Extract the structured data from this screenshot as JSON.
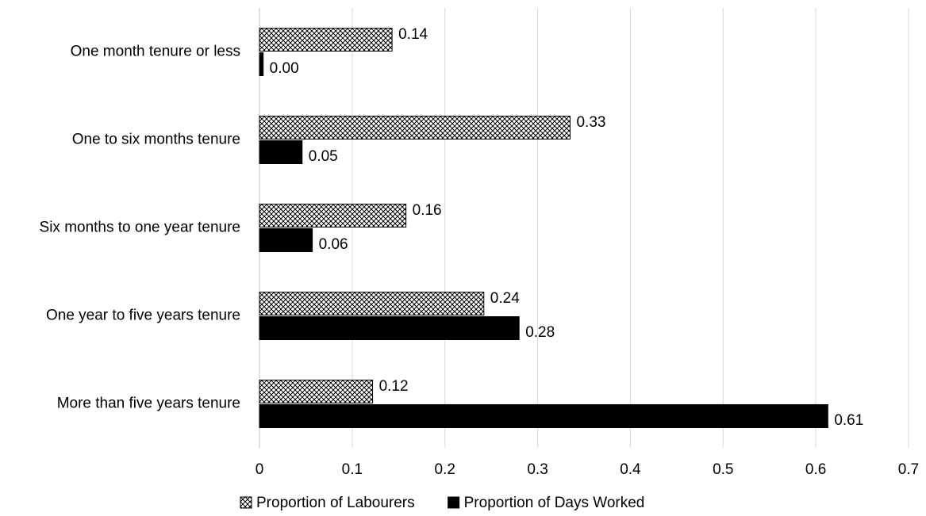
{
  "chart_data": {
    "type": "hbar",
    "categories": [
      "One month tenure or less",
      "One to six months tenure",
      "Six months to one year tenure",
      "One year to five years tenure",
      "More than five years tenure"
    ],
    "series": [
      {
        "name": "Proportion of Labourers",
        "color": "#000000",
        "pattern": "crosshatch",
        "values": [
          0.143,
          0.335,
          0.158,
          0.242,
          0.122
        ],
        "value_labels": [
          "0.14",
          "0.33",
          "0.16",
          "0.24",
          "0.12"
        ]
      },
      {
        "name": "Proportion of Days Worked",
        "color": "#000000",
        "values": [
          0.004,
          0.046,
          0.057,
          0.28,
          0.613
        ],
        "value_labels": [
          "0.00",
          "0.05",
          "0.06",
          "0.28",
          "0.61"
        ]
      }
    ],
    "xlim": [
      0,
      0.7
    ],
    "xticks": [
      0,
      0.1,
      0.2,
      0.3,
      0.4,
      0.5,
      0.6,
      0.7
    ],
    "grid": true,
    "legend": "bottom"
  }
}
